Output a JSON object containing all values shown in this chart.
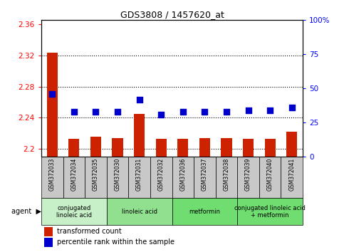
{
  "title": "GDS3808 / 1457620_at",
  "samples": [
    "GSM372033",
    "GSM372034",
    "GSM372035",
    "GSM372030",
    "GSM372031",
    "GSM372032",
    "GSM372036",
    "GSM372037",
    "GSM372038",
    "GSM372039",
    "GSM372040",
    "GSM372041"
  ],
  "transformed_count": [
    2.323,
    2.213,
    2.216,
    2.214,
    2.245,
    2.213,
    2.213,
    2.214,
    2.214,
    2.213,
    2.213,
    2.222
  ],
  "percentile_rank": [
    46,
    33,
    33,
    33,
    42,
    31,
    33,
    33,
    33,
    34,
    34,
    36
  ],
  "ylim_left": [
    2.19,
    2.365
  ],
  "ylim_right": [
    0,
    100
  ],
  "yticks_left": [
    2.2,
    2.24,
    2.28,
    2.32,
    2.36
  ],
  "yticks_right": [
    0,
    25,
    50,
    75,
    100
  ],
  "ytick_labels_right": [
    "0",
    "25",
    "50",
    "75",
    "100%"
  ],
  "agent_groups": [
    {
      "label": "conjugated\nlinoleic acid",
      "start": 0,
      "end": 3,
      "color": "#c8f0c8"
    },
    {
      "label": "linoleic acid",
      "start": 3,
      "end": 6,
      "color": "#90e090"
    },
    {
      "label": "metformin",
      "start": 6,
      "end": 9,
      "color": "#70dd70"
    },
    {
      "label": "conjugated linoleic acid\n+ metformin",
      "start": 9,
      "end": 12,
      "color": "#70dd70"
    }
  ],
  "bar_color": "#cc2200",
  "dot_color": "#0000cc",
  "bar_width": 0.5,
  "dot_size": 30,
  "sample_box_color": "#c8c8c8",
  "legend_dot_size": 7
}
